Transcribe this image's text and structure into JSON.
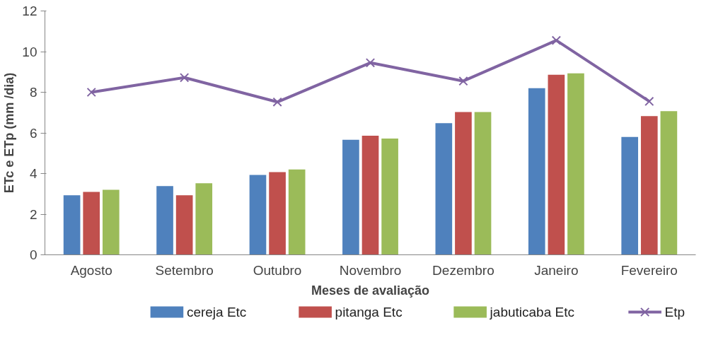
{
  "chart_data": {
    "type": "bar",
    "xlabel": "Meses de avaliação",
    "ylabel": "ETc e ETp (mm /dia)",
    "categories": [
      "Agosto",
      "Setembro",
      "Outubro",
      "Novembro",
      "Dezembro",
      "Janeiro",
      "Fevereiro"
    ],
    "series": [
      {
        "name": "cereja Etc",
        "color": "#4f81bd",
        "values": [
          2.93,
          3.38,
          3.93,
          5.66,
          6.48,
          8.2,
          5.8
        ]
      },
      {
        "name": "pitanga Etc",
        "color": "#c0504d",
        "values": [
          3.1,
          2.93,
          4.07,
          5.86,
          7.03,
          8.86,
          6.83
        ]
      },
      {
        "name": "jabuticaba Etc",
        "color": "#9bbb59",
        "values": [
          3.2,
          3.52,
          4.2,
          5.72,
          7.03,
          8.93,
          7.07
        ]
      },
      {
        "name": "Etp",
        "type": "line",
        "color": "#8064a2",
        "marker": "cross",
        "values": [
          8.0,
          8.72,
          7.52,
          9.45,
          8.55,
          10.55,
          7.55
        ]
      }
    ],
    "ylim": [
      0,
      12
    ],
    "yticks": [
      0,
      2,
      4,
      6,
      8,
      10,
      12
    ],
    "grid": false,
    "legend": "bottom"
  }
}
